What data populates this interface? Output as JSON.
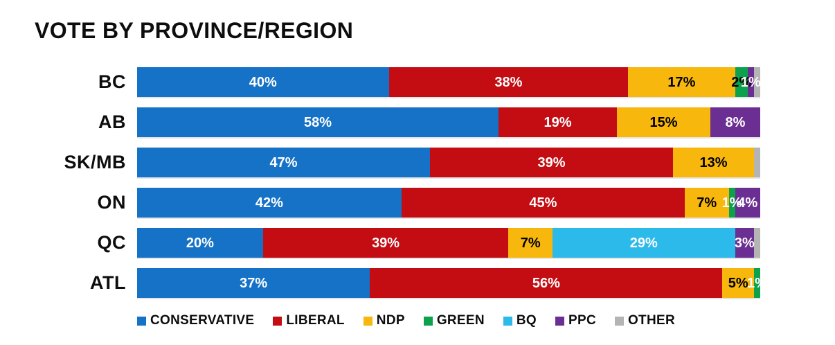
{
  "title": "VOTE BY PROVINCE/REGION",
  "parties": [
    {
      "id": "conservative",
      "name": "CONSERVATIVE",
      "color": "#1572C6"
    },
    {
      "id": "liberal",
      "name": "LIBERAL",
      "color": "#C30D13"
    },
    {
      "id": "ndp",
      "name": "NDP",
      "color": "#F7B70D"
    },
    {
      "id": "green",
      "name": "GREEN",
      "color": "#0CA24D"
    },
    {
      "id": "bq",
      "name": "BQ",
      "color": "#2CBAEB"
    },
    {
      "id": "ppc",
      "name": "PPC",
      "color": "#6B2E92"
    },
    {
      "id": "other",
      "name": "OTHER",
      "color": "#B4B4B4"
    }
  ],
  "rows": [
    {
      "label": "BC",
      "segments": [
        {
          "party": "CONSERVATIVE",
          "value": 40,
          "text": "40%",
          "text_color": "#FFFFFF"
        },
        {
          "party": "LIBERAL",
          "value": 38,
          "text": "38%",
          "text_color": "#FFFFFF"
        },
        {
          "party": "NDP",
          "value": 17,
          "text": "17%",
          "text_color": "#000000"
        },
        {
          "party": "GREEN",
          "value": 2,
          "text": "2%",
          "text_color": "#000000"
        },
        {
          "party": "PPC",
          "value": 1,
          "text": "1%",
          "text_color": "#FFFFFF"
        },
        {
          "party": "OTHER",
          "value": 1,
          "text": "",
          "text_color": ""
        }
      ]
    },
    {
      "label": "AB",
      "segments": [
        {
          "party": "CONSERVATIVE",
          "value": 58,
          "text": "58%",
          "text_color": "#FFFFFF"
        },
        {
          "party": "LIBERAL",
          "value": 19,
          "text": "19%",
          "text_color": "#FFFFFF"
        },
        {
          "party": "NDP",
          "value": 15,
          "text": "15%",
          "text_color": "#000000"
        },
        {
          "party": "PPC",
          "value": 8,
          "text": "8%",
          "text_color": "#FFFFFF"
        }
      ]
    },
    {
      "label": "SK/MB",
      "segments": [
        {
          "party": "CONSERVATIVE",
          "value": 47,
          "text": "47%",
          "text_color": "#FFFFFF"
        },
        {
          "party": "LIBERAL",
          "value": 39,
          "text": "39%",
          "text_color": "#FFFFFF"
        },
        {
          "party": "NDP",
          "value": 13,
          "text": "13%",
          "text_color": "#000000"
        },
        {
          "party": "OTHER",
          "value": 1,
          "text": "",
          "text_color": ""
        }
      ]
    },
    {
      "label": "ON",
      "segments": [
        {
          "party": "CONSERVATIVE",
          "value": 42,
          "text": "42%",
          "text_color": "#FFFFFF"
        },
        {
          "party": "LIBERAL",
          "value": 45,
          "text": "45%",
          "text_color": "#FFFFFF"
        },
        {
          "party": "NDP",
          "value": 7,
          "text": "7%",
          "text_color": "#000000"
        },
        {
          "party": "GREEN",
          "value": 1,
          "text": "1%",
          "text_color": "#FFFFFF"
        },
        {
          "party": "PPC",
          "value": 4,
          "text": "4%",
          "text_color": "#FFFFFF"
        }
      ]
    },
    {
      "label": "QC",
      "segments": [
        {
          "party": "CONSERVATIVE",
          "value": 20,
          "text": "20%",
          "text_color": "#FFFFFF"
        },
        {
          "party": "LIBERAL",
          "value": 39,
          "text": "39%",
          "text_color": "#FFFFFF"
        },
        {
          "party": "NDP",
          "value": 7,
          "text": "7%",
          "text_color": "#000000"
        },
        {
          "party": "BQ",
          "value": 29,
          "text": "29%",
          "text_color": "#FFFFFF"
        },
        {
          "party": "PPC",
          "value": 3,
          "text": "3%",
          "text_color": "#FFFFFF"
        },
        {
          "party": "OTHER",
          "value": 1,
          "text": "",
          "text_color": ""
        }
      ]
    },
    {
      "label": "ATL",
      "segments": [
        {
          "party": "CONSERVATIVE",
          "value": 37,
          "text": "37%",
          "text_color": "#FFFFFF"
        },
        {
          "party": "LIBERAL",
          "value": 56,
          "text": "56%",
          "text_color": "#FFFFFF"
        },
        {
          "party": "NDP",
          "value": 5,
          "text": "5%",
          "text_color": "#000000"
        },
        {
          "party": "GREEN",
          "value": 1,
          "text": "1%",
          "text_color": "#FFFFFF"
        }
      ]
    }
  ],
  "legend": [
    "CONSERVATIVE",
    "LIBERAL",
    "NDP",
    "GREEN",
    "BQ",
    "PPC",
    "OTHER"
  ],
  "chart_data": {
    "type": "bar",
    "subtype": "stacked-horizontal-100pct",
    "title": "VOTE BY PROVINCE/REGION",
    "categories": [
      "BC",
      "AB",
      "SK/MB",
      "ON",
      "QC",
      "ATL"
    ],
    "series": [
      {
        "name": "CONSERVATIVE",
        "color": "#1572C6",
        "values": [
          40,
          58,
          47,
          42,
          20,
          37
        ]
      },
      {
        "name": "LIBERAL",
        "color": "#C30D13",
        "values": [
          38,
          19,
          39,
          45,
          39,
          56
        ]
      },
      {
        "name": "NDP",
        "color": "#F7B70D",
        "values": [
          17,
          15,
          13,
          7,
          7,
          5
        ]
      },
      {
        "name": "GREEN",
        "color": "#0CA24D",
        "values": [
          2,
          0,
          0,
          1,
          0,
          1
        ]
      },
      {
        "name": "BQ",
        "color": "#2CBAEB",
        "values": [
          0,
          0,
          0,
          0,
          29,
          0
        ]
      },
      {
        "name": "PPC",
        "color": "#6B2E92",
        "values": [
          1,
          8,
          0,
          4,
          3,
          0
        ]
      },
      {
        "name": "OTHER",
        "color": "#B4B4B4",
        "values": [
          1,
          0,
          1,
          0,
          1,
          0
        ]
      }
    ],
    "value_unit": "%",
    "xlabel": "",
    "ylabel": "",
    "xlim": [
      0,
      100
    ],
    "grid": false,
    "legend_position": "bottom"
  }
}
